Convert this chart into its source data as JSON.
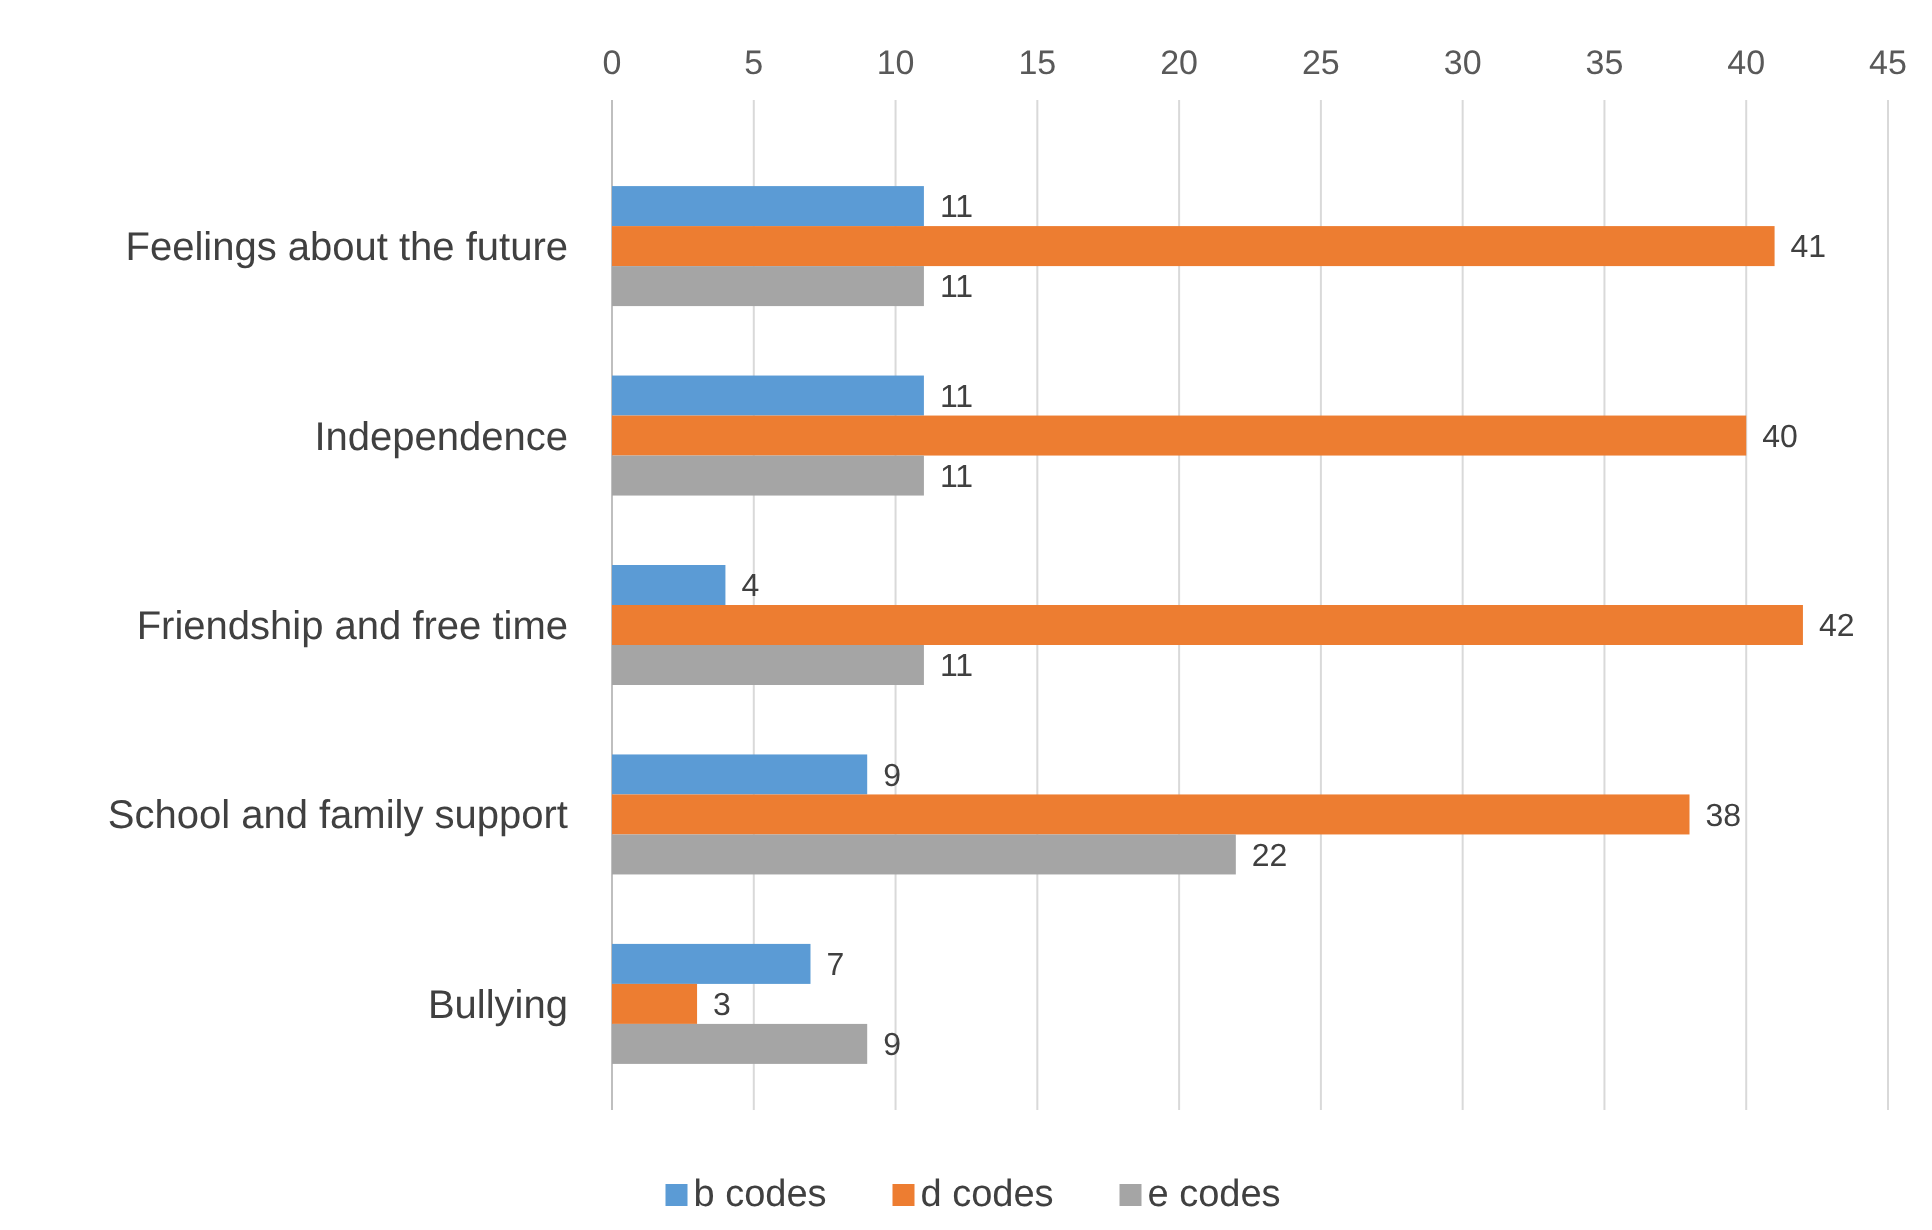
{
  "chart_data": {
    "type": "bar",
    "orientation": "horizontal",
    "categories": [
      "Feelings about the future",
      "Independence",
      "Friendship and free time",
      "School and family support",
      "Bullying"
    ],
    "series": [
      {
        "name": "b codes",
        "color": "#5b9bd5",
        "values": [
          11,
          11,
          4,
          9,
          7
        ]
      },
      {
        "name": "d codes",
        "color": "#ed7d31",
        "values": [
          41,
          40,
          42,
          38,
          3
        ]
      },
      {
        "name": "e codes",
        "color": "#a5a5a5",
        "values": [
          11,
          11,
          11,
          22,
          9
        ]
      }
    ],
    "xlim": [
      0,
      45
    ],
    "xticks": [
      0,
      5,
      10,
      15,
      20,
      25,
      30,
      35,
      40,
      45
    ],
    "grid": "x",
    "data_labels": true,
    "legend": "bottom"
  }
}
